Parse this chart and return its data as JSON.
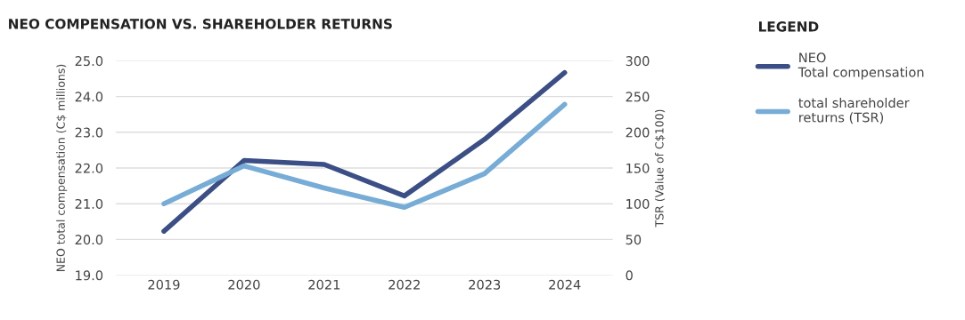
{
  "chart_data": {
    "type": "line",
    "title": "NEO COMPENSATION VS. SHAREHOLDER RETURNS",
    "ylabel": "NEO total compensation (C$ millions)",
    "y2label": "TSR (Value of C$100)",
    "legend_title": "LEGEND",
    "legend": "right",
    "grid": "y",
    "categories": [
      "2019",
      "2020",
      "2021",
      "2022",
      "2023",
      "2024"
    ],
    "ylim": [
      19.0,
      25.0
    ],
    "yticks": [
      {
        "value": 19,
        "label": "19.0"
      },
      {
        "value": 20,
        "label": "20.0"
      },
      {
        "value": 21,
        "label": "21.0"
      },
      {
        "value": 22,
        "label": "22.0"
      },
      {
        "value": 23,
        "label": "23.0"
      },
      {
        "value": 24,
        "label": "24.0"
      },
      {
        "value": 25,
        "label": "25.0"
      }
    ],
    "y2lim": [
      0,
      300
    ],
    "y2ticks": [
      0,
      50,
      100,
      150,
      200,
      250,
      300
    ],
    "series": [
      {
        "name": "NEO Total compensation",
        "color": "#3b4f86",
        "values": [
          20.23,
          22.21,
          22.1,
          21.22,
          22.8,
          24.67
        ]
      },
      {
        "name": "total shareholder returns (TSR)",
        "color": "#76acd6",
        "axis": "y2",
        "values": [
          100,
          153,
          122,
          95,
          142,
          239
        ]
      }
    ]
  }
}
